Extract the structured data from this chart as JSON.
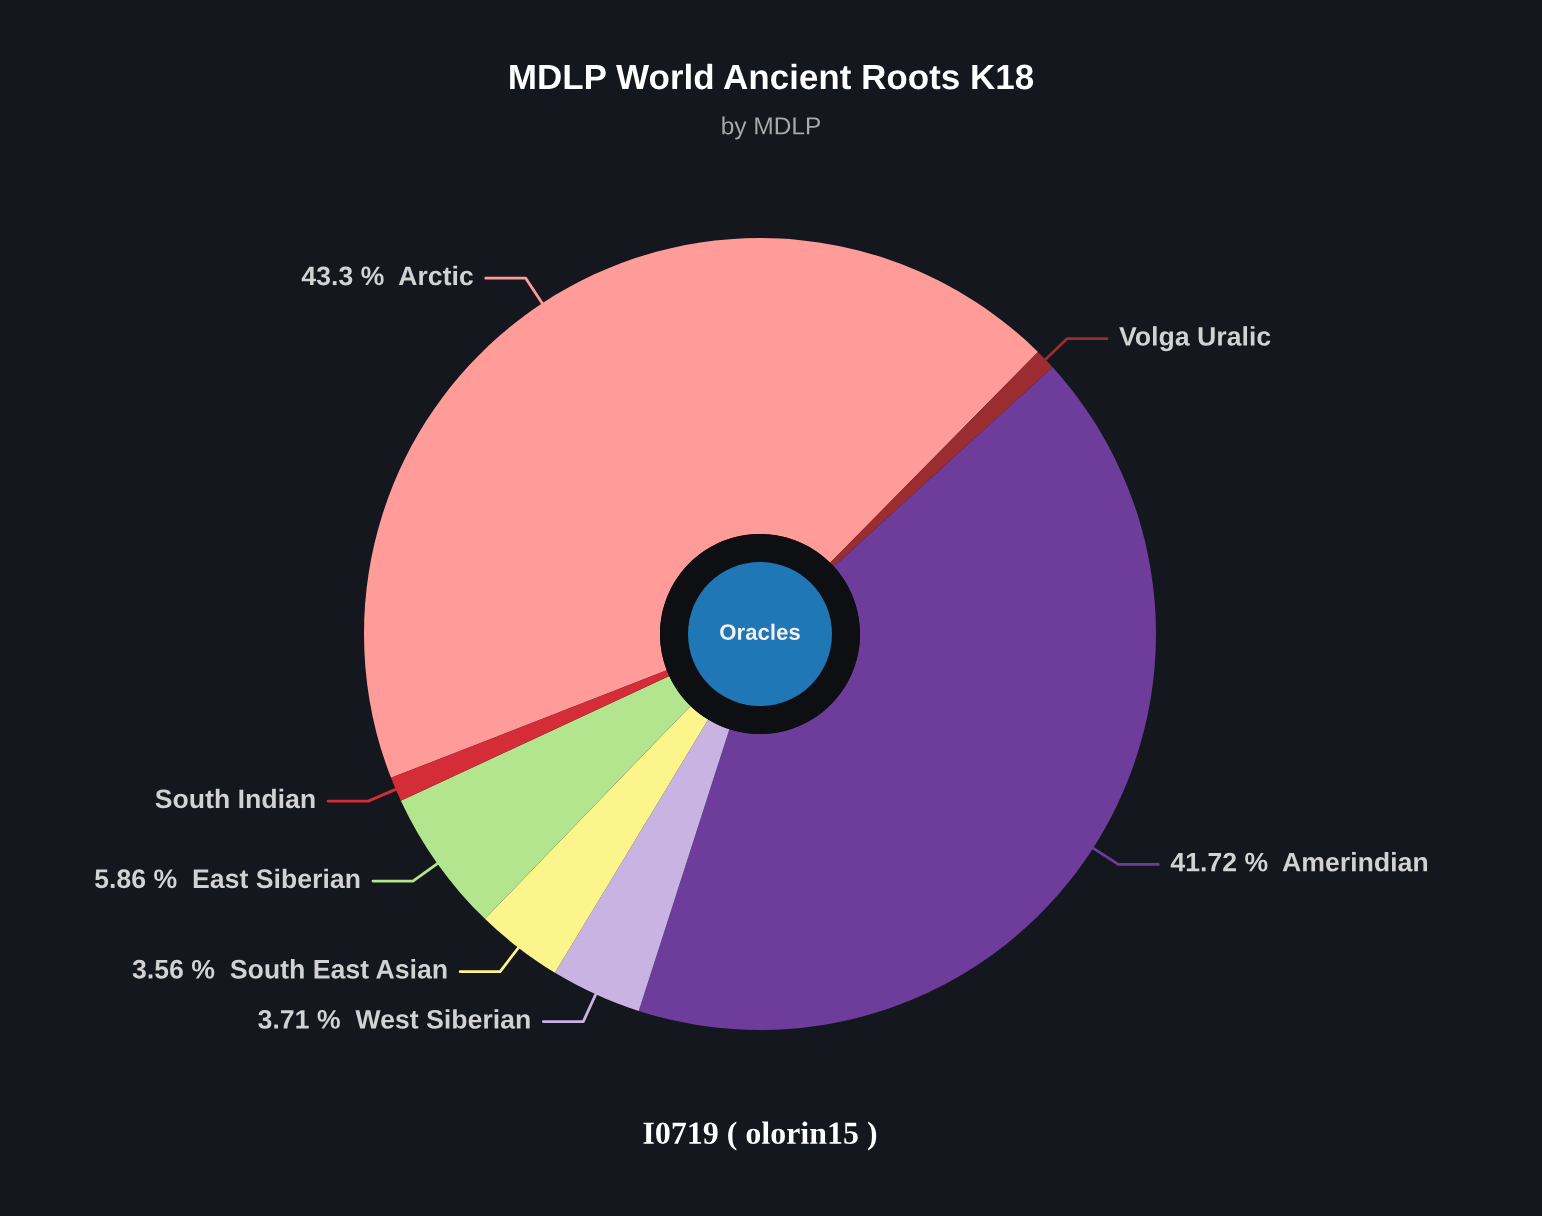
{
  "chart_data": {
    "type": "donut",
    "title": "MDLP World Ancient Roots K18",
    "subtitle": "by MDLP",
    "categories": [
      "Arctic",
      "Volga Uralic",
      "Amerindian",
      "West Siberian",
      "South East Asian",
      "East Siberian",
      "South Indian"
    ],
    "values": [
      43.3,
      0.85,
      41.72,
      3.71,
      3.56,
      5.86,
      1.0
    ],
    "colors": [
      "#ff9b98",
      "#9b2c30",
      "#6e3d9c",
      "#c9b3e3",
      "#fbf58c",
      "#b3e48e",
      "#d42d37"
    ],
    "value_labels": [
      "43.3 %",
      null,
      "41.72 %",
      "3.71 %",
      "3.56 %",
      "5.86 %",
      null
    ],
    "annotations": [
      "Oracles",
      "I0719 ( olorin15 )"
    ]
  }
}
